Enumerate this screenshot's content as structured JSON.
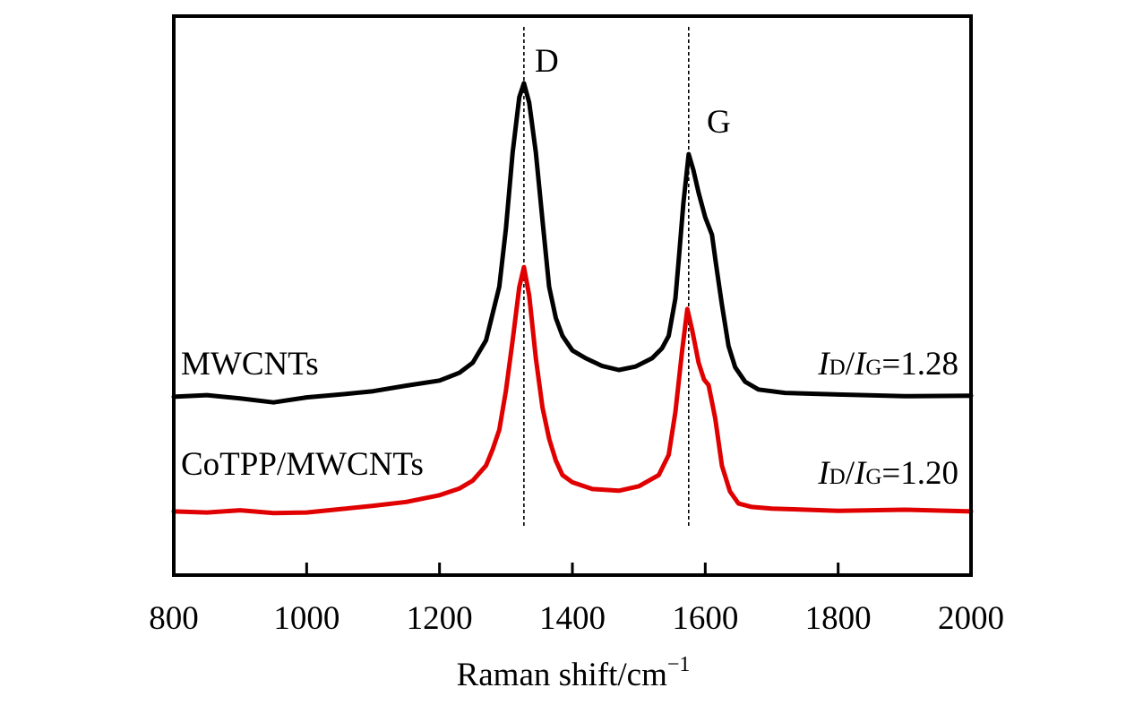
{
  "chart_data": {
    "type": "line",
    "title": "",
    "xlabel": "Raman shift/cm",
    "xlabel_superscript": "−1",
    "ylabel": "",
    "xlim": [
      800,
      2000
    ],
    "ylim": [
      0,
      100
    ],
    "y_units": "arbitrary intensity (no y-axis ticks shown)",
    "xticks": [
      800,
      1000,
      1200,
      1400,
      1600,
      1800,
      2000
    ],
    "xtick_labels": [
      "800",
      "1000",
      "1200",
      "1400",
      "1600",
      "1800",
      "2000"
    ],
    "grid": false,
    "legend": "none (inline series labels)",
    "reference_lines": [
      {
        "name": "D",
        "x": 1327,
        "style": "dashed"
      },
      {
        "name": "G",
        "x": 1575,
        "style": "dashed"
      }
    ],
    "peak_labels": [
      {
        "text": "D",
        "x": 1335,
        "y": 92
      },
      {
        "text": "G",
        "x": 1590,
        "y": 80
      }
    ],
    "series": [
      {
        "name": "MWCNTs",
        "color": "#000000",
        "ratio_text": {
          "I_D": "I",
          "D_sub": "D",
          "slash": "/",
          "I_G": "I",
          "G_sub": "G",
          "value": "=1.28"
        },
        "x": [
          800,
          850,
          900,
          950,
          1000,
          1050,
          1100,
          1150,
          1200,
          1230,
          1250,
          1270,
          1290,
          1300,
          1310,
          1320,
          1327,
          1335,
          1345,
          1355,
          1365,
          1375,
          1385,
          1400,
          1420,
          1445,
          1470,
          1495,
          1520,
          1535,
          1545,
          1555,
          1560,
          1567,
          1575,
          1582,
          1590,
          1600,
          1610,
          1617,
          1625,
          1635,
          1645,
          1660,
          1680,
          1720,
          1800,
          1900,
          2000
        ],
        "y": [
          31.9,
          32.2,
          31.6,
          30.9,
          31.8,
          32.3,
          32.9,
          33.9,
          34.8,
          36.2,
          38.0,
          42.0,
          51.6,
          62.0,
          75.6,
          85.5,
          88.0,
          84.5,
          75.6,
          63.5,
          51.6,
          46.0,
          42.8,
          40.2,
          38.8,
          37.4,
          36.7,
          37.3,
          38.8,
          40.6,
          42.8,
          49.5,
          56.4,
          66.5,
          75.3,
          72.5,
          68.4,
          64.0,
          60.9,
          55.0,
          48.4,
          41.0,
          37.2,
          34.6,
          33.2,
          32.6,
          32.3,
          32.0,
          32.1
        ]
      },
      {
        "name": "CoTPP/MWCNTs",
        "color": "#e00000",
        "ratio_text": {
          "I_D": "I",
          "D_sub": "D",
          "slash": "/",
          "I_G": "I",
          "G_sub": "G",
          "value": "=1.20"
        },
        "x": [
          800,
          850,
          900,
          950,
          1000,
          1050,
          1100,
          1150,
          1200,
          1230,
          1250,
          1270,
          1280,
          1290,
          1300,
          1310,
          1320,
          1327,
          1335,
          1345,
          1355,
          1365,
          1375,
          1385,
          1400,
          1430,
          1470,
          1500,
          1530,
          1545,
          1555,
          1565,
          1573,
          1580,
          1590,
          1598,
          1605,
          1615,
          1625,
          1637,
          1650,
          1670,
          1700,
          1800,
          1900,
          2000
        ],
        "y": [
          11.4,
          11.2,
          11.6,
          11.1,
          11.2,
          11.8,
          12.4,
          13.1,
          14.3,
          15.5,
          16.9,
          19.6,
          22.5,
          26.0,
          33.0,
          42.0,
          51.5,
          55.1,
          50.0,
          38.8,
          30.0,
          24.4,
          20.5,
          17.9,
          16.6,
          15.4,
          15.1,
          15.9,
          17.9,
          21.5,
          29.2,
          40.0,
          47.6,
          44.0,
          38.0,
          35.0,
          34.0,
          28.0,
          19.6,
          15.0,
          12.8,
          12.2,
          11.9,
          11.5,
          11.7,
          11.4
        ]
      }
    ]
  }
}
